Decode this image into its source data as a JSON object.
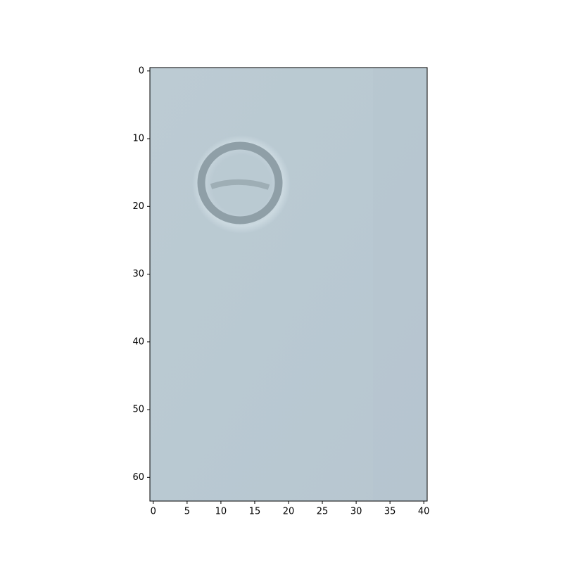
{
  "chart_data": {
    "type": "image",
    "xlim": [
      -0.5,
      40.5
    ],
    "ylim": [
      63.5,
      -0.5
    ],
    "xticks": [
      0,
      5,
      10,
      15,
      20,
      25,
      30,
      35,
      40
    ],
    "yticks": [
      0,
      10,
      20,
      30,
      40,
      50,
      60
    ]
  }
}
